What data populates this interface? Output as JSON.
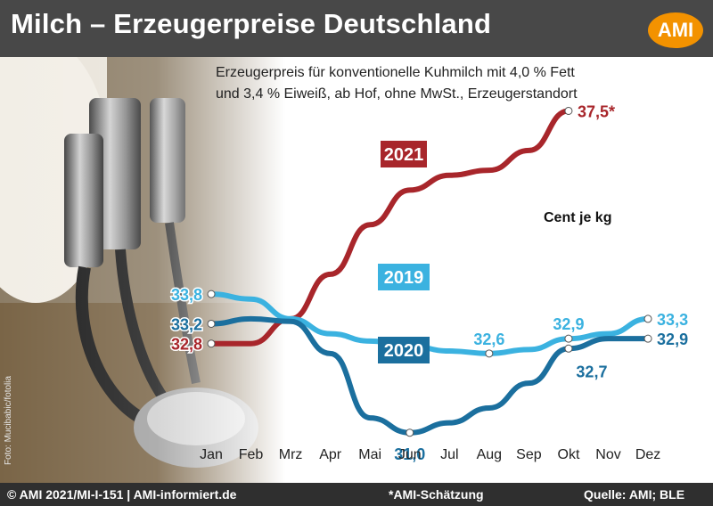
{
  "header": {
    "title": "Milch – Erzeugerpreise Deutschland",
    "logo_text": "AMI",
    "logo_color": "#f39200"
  },
  "photo_credit": "Foto: Mucibabic/fotolia",
  "subtitle_lines": [
    "Erzeugerpreis für konventionelle Kuhmilch mit 4,0 % Fett",
    "und 3,4 % Eiweiß, ab Hof, ohne MwSt., Erzeugerstandort"
  ],
  "unit_label": "Cent je kg",
  "footer": {
    "left": "© AMI 2021/MI-I-151 | AMI-informiert.de",
    "center": "*AMI-Schätzung",
    "right": "Quelle: AMI; BLE"
  },
  "chart_data": {
    "type": "line",
    "categories": [
      "Jan",
      "Feb",
      "Mrz",
      "Apr",
      "Mai",
      "Jun",
      "Jul",
      "Aug",
      "Sep",
      "Okt",
      "Nov",
      "Dez"
    ],
    "series": [
      {
        "name": "2021",
        "color": "#a8262b",
        "values": [
          32.8,
          32.8,
          33.3,
          34.2,
          35.2,
          35.9,
          36.2,
          36.3,
          36.7,
          37.5,
          null,
          null
        ],
        "labels": [
          {
            "index": 0,
            "text": "32,8",
            "pos": "left"
          },
          {
            "index": 9,
            "text": "37,5*",
            "pos": "right"
          }
        ]
      },
      {
        "name": "2019",
        "color": "#3bb2e0",
        "values": [
          33.8,
          33.7,
          33.3,
          33.0,
          32.85,
          32.75,
          32.65,
          32.6,
          32.68,
          32.9,
          33.0,
          33.3
        ],
        "labels": [
          {
            "index": 0,
            "text": "33,8",
            "pos": "left"
          },
          {
            "index": 7,
            "text": "32,6",
            "pos": "above"
          },
          {
            "index": 9,
            "text": "32,9",
            "pos": "above"
          },
          {
            "index": 11,
            "text": "33,3",
            "pos": "right"
          }
        ]
      },
      {
        "name": "2020",
        "color": "#1b6f9e",
        "values": [
          33.2,
          33.3,
          33.25,
          32.6,
          31.3,
          31.0,
          31.2,
          31.5,
          32.0,
          32.7,
          32.9,
          32.9
        ],
        "labels": [
          {
            "index": 0,
            "text": "33,2",
            "pos": "left"
          },
          {
            "index": 5,
            "text": "31,0",
            "pos": "below"
          },
          {
            "index": 9,
            "text": "32,7",
            "pos": "below-right"
          },
          {
            "index": 11,
            "text": "32,9",
            "pos": "right"
          }
        ]
      }
    ],
    "ylim": [
      30.6,
      38.3
    ],
    "grid": false
  }
}
